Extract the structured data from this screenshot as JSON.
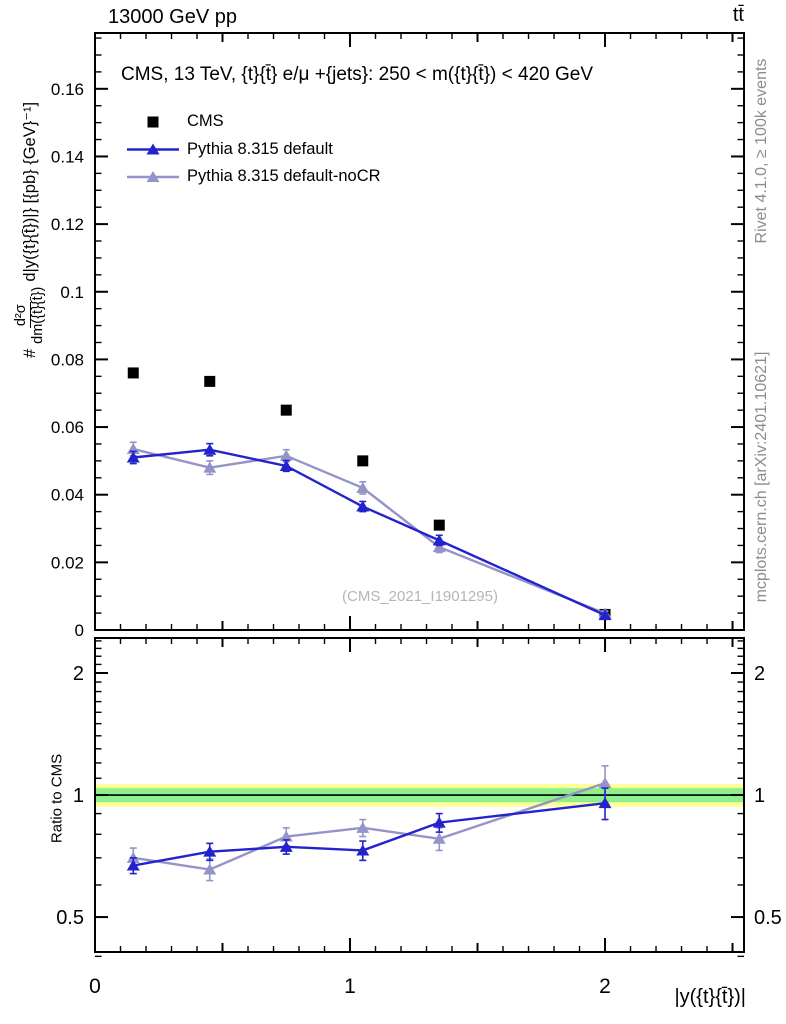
{
  "header": {
    "left": "13000 GeV pp",
    "right": "tt̄"
  },
  "main_panel": {
    "title": "CMS, 13 TeV, {t}{t̄} e/μ +{jets}: 250 < m({t}{t̄}) < 420 GeV"
  },
  "legend": {
    "entries": [
      {
        "label": "CMS",
        "marker": "square",
        "color": "#000000",
        "line": false
      },
      {
        "label": "Pythia 8.315 default",
        "marker": "triangle",
        "color": "#2323cd",
        "line": true
      },
      {
        "label": "Pythia 8.315 default-noCR",
        "marker": "triangle",
        "color": "#9494c8",
        "line": true
      }
    ]
  },
  "watermark": "(CMS_2021_I1901295)",
  "side_notes": {
    "top": "Rivet 4.1.0, ≥ 100k events",
    "bottom": "mcplots.cern.ch [arXiv:2401.10621]"
  },
  "axis_labels": {
    "x": "|y({t}{t̄})|",
    "ratio_y": "Ratio to CMS",
    "main_y_prefix": "#",
    "main_y_numerator": "d²σ",
    "main_y_denominator": "dm({t}{t̄})",
    "main_y_suffix": "d|y({t}{t̄})|} [{pb} {GeV}⁻¹]"
  },
  "colors": {
    "cms": "#000000",
    "pythia_default": "#2323cd",
    "pythia_nocr": "#9494c8",
    "band_yellow": "#ffff99",
    "band_green": "#8df08d",
    "frame": "#000000",
    "side_text": "#8c8c8c",
    "watermark": "#b5b5b5"
  },
  "chart_data": [
    {
      "type": "scatter",
      "panel": "main",
      "title": "CMS, 13 TeV, {t}{t̄} e/μ +{jets}: 250 < m({t}{t̄}) < 420 GeV",
      "xlabel": "|y({t}{t̄})|",
      "ylabel": "# d²σ/dm({t}{t̄}) d|y({t}{t̄})|} [{pb} {GeV}⁻¹]",
      "xlim": [
        0,
        2.545
      ],
      "ylim": [
        0,
        0.1765
      ],
      "grid": false,
      "legend_position": "top-left",
      "x": [
        0.15,
        0.45,
        0.75,
        1.05,
        1.35,
        2.0
      ],
      "series": [
        {
          "name": "CMS",
          "marker": "square",
          "color": "#000000",
          "connect": false,
          "values": [
            0.076,
            0.0735,
            0.065,
            0.05,
            0.031,
            0.0046
          ],
          "errors": [
            0,
            0,
            0,
            0,
            0,
            0
          ]
        },
        {
          "name": "Pythia 8.315 default",
          "marker": "triangle",
          "color": "#2323cd",
          "connect": true,
          "values": [
            0.051,
            0.0533,
            0.0485,
            0.0365,
            0.0265,
            0.0044
          ],
          "errors": [
            0.0018,
            0.0018,
            0.0016,
            0.0015,
            0.0015,
            0.0006
          ]
        },
        {
          "name": "Pythia 8.315 default-noCR",
          "marker": "triangle",
          "color": "#9494c8",
          "connect": true,
          "values": [
            0.0535,
            0.048,
            0.0515,
            0.042,
            0.0245,
            0.0049
          ],
          "errors": [
            0.002,
            0.002,
            0.0018,
            0.0018,
            0.0016,
            0.0007
          ]
        }
      ],
      "yticks": {
        "major": [
          0,
          0.02,
          0.04,
          0.06,
          0.08,
          0.1,
          0.12,
          0.14,
          0.16
        ],
        "labels": [
          "0",
          "0.02",
          "0.04",
          "0.06",
          "0.08",
          "0.1",
          "0.12",
          "0.14",
          "0.16"
        ],
        "minor_step": 0.005
      },
      "xticks": {
        "major": [
          0,
          1,
          2
        ],
        "labels": [
          "",
          "",
          ""
        ],
        "medium": [
          0.5,
          1.5,
          2.5
        ],
        "minor_step": 0.1
      }
    },
    {
      "type": "line",
      "panel": "ratio",
      "ylabel": "Ratio to CMS",
      "ylog": true,
      "xlim": [
        0,
        2.545
      ],
      "ylim": [
        0.41,
        2.44
      ],
      "reference_line": 1,
      "bands": [
        {
          "lo": 0.935,
          "hi": 1.065,
          "color": "#ffff99"
        },
        {
          "lo": 0.96,
          "hi": 1.04,
          "color": "#8df08d"
        }
      ],
      "x": [
        0.15,
        0.45,
        0.75,
        1.05,
        1.35,
        2.0
      ],
      "series": [
        {
          "name": "Pythia 8.315 default / CMS",
          "marker": "triangle",
          "color": "#2323cd",
          "connect": true,
          "values": [
            0.67,
            0.725,
            0.745,
            0.73,
            0.855,
            0.955
          ],
          "errors": [
            0.03,
            0.035,
            0.03,
            0.04,
            0.045,
            0.085
          ]
        },
        {
          "name": "Pythia 8.315 default-noCR / CMS",
          "marker": "triangle",
          "color": "#9494c8",
          "connect": true,
          "values": [
            0.7,
            0.655,
            0.79,
            0.83,
            0.78,
            1.07
          ],
          "errors": [
            0.04,
            0.04,
            0.04,
            0.04,
            0.05,
            0.11
          ]
        }
      ],
      "yticks": {
        "major": [
          0.5,
          1,
          2
        ],
        "labels": [
          "0.5",
          "1",
          "2"
        ],
        "minor": [
          0.4,
          0.6,
          0.7,
          0.8,
          0.9,
          1.1,
          1.2,
          1.3,
          1.4,
          1.5,
          1.6,
          1.7,
          1.8,
          1.9,
          2.1,
          2.2,
          2.3,
          2.4
        ]
      },
      "xticks": {
        "major": [
          0,
          1,
          2
        ],
        "labels": [
          "0",
          "1",
          "2"
        ],
        "medium": [
          0.5,
          1.5,
          2.5
        ],
        "minor_step": 0.1
      }
    }
  ]
}
